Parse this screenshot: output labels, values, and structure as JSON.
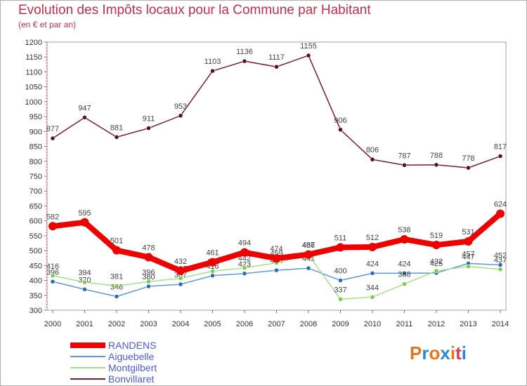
{
  "header": {
    "title": "Evolution des Impôts locaux pour la Commune par Habitant",
    "subtitle": "(en € et par an)"
  },
  "logo": {
    "text": "Proxiti",
    "colors": [
      "#e8731e",
      "#2a8ad8",
      "#e8731e",
      "#2a8ad8",
      "#e8731e",
      "#d83a5a",
      "#2a8ad8"
    ]
  },
  "chart_data": {
    "type": "line",
    "title": "Evolution des Impôts locaux pour la Commune par Habitant",
    "subtitle": "(en € et par an)",
    "xlabel": "",
    "ylabel": "",
    "ylim": [
      300,
      1200
    ],
    "y_ticks": [
      300,
      350,
      400,
      450,
      500,
      550,
      600,
      650,
      700,
      750,
      800,
      850,
      900,
      950,
      1000,
      1050,
      1100,
      1150,
      1200
    ],
    "categories": [
      "2000",
      "2001",
      "2002",
      "2003",
      "2004",
      "2005",
      "2006",
      "2007",
      "2008",
      "2009",
      "2010",
      "2011",
      "2012",
      "2013",
      "2014"
    ],
    "legend_position": "bottom-left",
    "series": [
      {
        "name": "Bonvillaret",
        "color": "#7a1e28",
        "marker_color": "#5a1018",
        "emphasis": false,
        "values": [
          877,
          947,
          881,
          911,
          953,
          1103,
          1136,
          1117,
          1155,
          906,
          806,
          787,
          788,
          778,
          817
        ]
      },
      {
        "name": "Aiguebelle",
        "color": "#5a9ad8",
        "marker_color": "#2a6ab8",
        "emphasis": false,
        "values": [
          396,
          370,
          346,
          380,
          387,
          416,
          423,
          434,
          441,
          400,
          424,
          424,
          425,
          457,
          452
        ]
      },
      {
        "name": "Montgilbert",
        "color": "#a8e088",
        "marker_color": "#78d048",
        "emphasis": false,
        "values": [
          416,
          394,
          381,
          396,
          407,
          431,
          442,
          459,
          486,
          337,
          344,
          388,
          432,
          447,
          437
        ]
      },
      {
        "name": "RANDENS",
        "color": "#ee0000",
        "marker_color": "#ee0000",
        "emphasis": true,
        "values": [
          582,
          595,
          501,
          478,
          432,
          461,
          494,
          474,
          487,
          511,
          512,
          538,
          519,
          531,
          624
        ]
      }
    ],
    "legend_order": [
      "RANDENS",
      "Aiguebelle",
      "Montgilbert",
      "Bonvillaret"
    ]
  }
}
